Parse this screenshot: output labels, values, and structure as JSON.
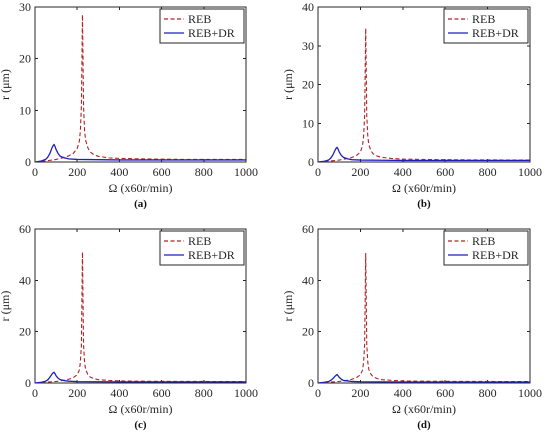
{
  "figure": {
    "panels": [
      {
        "panel_label": "(a)"
      },
      {
        "panel_label": "(b)"
      },
      {
        "panel_label": "(c)"
      },
      {
        "panel_label": "(d)"
      }
    ]
  },
  "chart_data": [
    {
      "type": "line",
      "panel": "(a)",
      "xlabel": "Ω (x60r/min)",
      "ylabel": "r (μm)",
      "xlim": [
        0,
        1000
      ],
      "ylim": [
        0,
        30
      ],
      "xticks": [
        0,
        200,
        400,
        600,
        800,
        1000
      ],
      "yticks": [
        0,
        10,
        20,
        30
      ],
      "legend_position": "top-right",
      "grid": false,
      "series": [
        {
          "name": "REB",
          "style": "dashed",
          "color": "#b22222",
          "x": [
            0,
            50,
            100,
            150,
            180,
            200,
            210,
            215,
            220,
            225,
            230,
            235,
            240,
            250,
            260,
            280,
            300,
            350,
            400,
            500,
            600,
            700,
            800,
            900,
            1000
          ],
          "y": [
            0,
            0.2,
            0.5,
            1.0,
            1.6,
            2.6,
            4.0,
            6.0,
            11.0,
            28.5,
            11.0,
            6.0,
            4.2,
            2.8,
            2.0,
            1.4,
            1.1,
            0.8,
            0.7,
            0.6,
            0.55,
            0.5,
            0.5,
            0.5,
            0.5
          ]
        },
        {
          "name": "REB+DR",
          "style": "solid",
          "color": "#1f1fbf",
          "x": [
            0,
            30,
            50,
            60,
            70,
            80,
            85,
            90,
            95,
            100,
            110,
            120,
            140,
            160,
            200,
            300,
            400,
            600,
            800,
            1000
          ],
          "y": [
            0,
            0.2,
            0.5,
            0.9,
            1.6,
            2.7,
            3.1,
            3.4,
            3.0,
            2.4,
            1.6,
            1.1,
            0.8,
            0.6,
            0.5,
            0.45,
            0.4,
            0.4,
            0.4,
            0.4
          ]
        }
      ]
    },
    {
      "type": "line",
      "panel": "(b)",
      "xlabel": "Ω (x60r/min)",
      "ylabel": "r (μm)",
      "xlim": [
        0,
        1000
      ],
      "ylim": [
        0,
        40
      ],
      "xticks": [
        0,
        200,
        400,
        600,
        800,
        1000
      ],
      "yticks": [
        0,
        10,
        20,
        30,
        40
      ],
      "legend_position": "top-right",
      "grid": false,
      "series": [
        {
          "name": "REB",
          "style": "dashed",
          "color": "#b22222",
          "x": [
            0,
            50,
            100,
            150,
            180,
            200,
            210,
            215,
            220,
            225,
            230,
            235,
            240,
            250,
            260,
            280,
            300,
            350,
            400,
            500,
            600,
            700,
            800,
            900,
            1000
          ],
          "y": [
            0,
            0.2,
            0.5,
            1.0,
            1.6,
            2.6,
            4.2,
            6.5,
            12.0,
            34.5,
            12.0,
            6.5,
            4.4,
            2.9,
            2.1,
            1.5,
            1.2,
            0.9,
            0.75,
            0.65,
            0.6,
            0.55,
            0.55,
            0.5,
            0.5
          ]
        },
        {
          "name": "REB+DR",
          "style": "solid",
          "color": "#1f1fbf",
          "x": [
            0,
            30,
            50,
            60,
            70,
            80,
            85,
            90,
            95,
            100,
            110,
            120,
            140,
            160,
            200,
            300,
            400,
            600,
            800,
            1000
          ],
          "y": [
            0,
            0.2,
            0.5,
            1.0,
            1.8,
            3.0,
            3.5,
            3.8,
            3.3,
            2.6,
            1.7,
            1.2,
            0.8,
            0.6,
            0.5,
            0.45,
            0.4,
            0.4,
            0.4,
            0.4
          ]
        }
      ]
    },
    {
      "type": "line",
      "panel": "(c)",
      "xlabel": "Ω (x60r/min)",
      "ylabel": "r (μm)",
      "xlim": [
        0,
        1000
      ],
      "ylim": [
        0,
        60
      ],
      "xticks": [
        0,
        200,
        400,
        600,
        800,
        1000
      ],
      "yticks": [
        0,
        20,
        40,
        60
      ],
      "legend_position": "top-right",
      "grid": false,
      "series": [
        {
          "name": "REB",
          "style": "dashed",
          "color": "#b22222",
          "x": [
            0,
            50,
            100,
            150,
            180,
            200,
            210,
            215,
            220,
            225,
            230,
            235,
            240,
            250,
            260,
            280,
            300,
            350,
            400,
            500,
            600,
            700,
            800,
            900,
            1000
          ],
          "y": [
            0,
            0.3,
            0.6,
            1.2,
            2.0,
            3.2,
            5.0,
            8.0,
            15.0,
            51.0,
            15.0,
            8.0,
            5.2,
            3.4,
            2.4,
            1.7,
            1.3,
            1.0,
            0.8,
            0.7,
            0.65,
            0.6,
            0.6,
            0.55,
            0.55
          ]
        },
        {
          "name": "REB+DR",
          "style": "solid",
          "color": "#1f1fbf",
          "x": [
            0,
            30,
            50,
            60,
            70,
            80,
            85,
            90,
            95,
            100,
            110,
            120,
            140,
            160,
            200,
            300,
            400,
            600,
            800,
            1000
          ],
          "y": [
            0,
            0.3,
            0.7,
            1.2,
            2.2,
            3.4,
            3.9,
            4.2,
            3.6,
            2.8,
            1.8,
            1.3,
            0.9,
            0.7,
            0.55,
            0.5,
            0.45,
            0.45,
            0.45,
            0.45
          ]
        }
      ]
    },
    {
      "type": "line",
      "panel": "(d)",
      "xlabel": "Ω (x60r/min)",
      "ylabel": "r (μm)",
      "xlim": [
        0,
        1000
      ],
      "ylim": [
        0,
        60
      ],
      "xticks": [
        0,
        200,
        400,
        600,
        800,
        1000
      ],
      "yticks": [
        0,
        20,
        40,
        60
      ],
      "legend_position": "top-right",
      "grid": false,
      "series": [
        {
          "name": "REB",
          "style": "dashed",
          "color": "#b22222",
          "x": [
            0,
            50,
            100,
            150,
            180,
            200,
            210,
            215,
            220,
            225,
            230,
            235,
            240,
            250,
            260,
            280,
            300,
            350,
            400,
            500,
            600,
            700,
            800,
            900,
            1000
          ],
          "y": [
            0,
            0.3,
            0.6,
            1.2,
            2.0,
            3.2,
            5.0,
            8.0,
            15.0,
            50.5,
            15.0,
            8.0,
            5.2,
            3.4,
            2.4,
            1.7,
            1.3,
            1.0,
            0.8,
            0.7,
            0.65,
            0.6,
            0.6,
            0.55,
            0.55
          ]
        },
        {
          "name": "REB+DR",
          "style": "solid",
          "color": "#1f1fbf",
          "x": [
            0,
            30,
            50,
            60,
            70,
            80,
            85,
            90,
            95,
            100,
            110,
            120,
            140,
            160,
            200,
            300,
            400,
            600,
            800,
            1000
          ],
          "y": [
            0,
            0.3,
            0.6,
            1.0,
            1.7,
            2.6,
            3.0,
            3.3,
            2.8,
            2.2,
            1.5,
            1.0,
            0.8,
            0.6,
            0.5,
            0.45,
            0.4,
            0.4,
            0.4,
            0.4
          ]
        }
      ]
    }
  ]
}
